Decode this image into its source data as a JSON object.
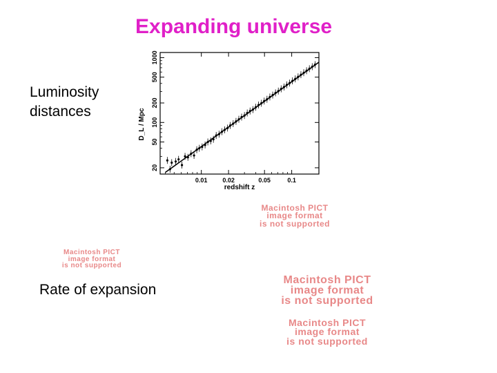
{
  "slide": {
    "title": "Expanding universe",
    "label_luminosity_line1": "Luminosity",
    "label_luminosity_line2": "distances",
    "label_rate": "Rate of expansion",
    "title_color": "#e020c8"
  },
  "placeholders": [
    {
      "line1": "Macintosh PICT",
      "line2": "image format",
      "line3": "is not supported"
    },
    {
      "line1": "Macintosh PICT",
      "line2": "image format",
      "line3": "is not supported"
    },
    {
      "line1": "Macintosh PICT",
      "line2": "image format",
      "line3": "is not supported"
    },
    {
      "line1": "Macintosh PICT",
      "line2": "image format",
      "line3": "is not supported"
    }
  ],
  "chart_data": {
    "type": "scatter",
    "xlabel": "redshift z",
    "ylabel": "D_L / Mpc",
    "xscale": "log",
    "yscale": "log",
    "xlim": [
      0.0035,
      0.2
    ],
    "ylim": [
      16,
      1200
    ],
    "xticks": [
      0.01,
      0.02,
      0.05,
      0.1
    ],
    "xticklabels": [
      "0.01",
      "0.02",
      "0.05",
      "0.1"
    ],
    "yticks": [
      20,
      50,
      100,
      200,
      500,
      1000
    ],
    "yticklabels": [
      "20",
      "50",
      "100",
      "200",
      "500",
      "1000"
    ],
    "fit_line": {
      "x": [
        0.004,
        0.2
      ],
      "y": [
        17,
        850
      ]
    },
    "points": [
      {
        "x": 0.0042,
        "y": 26
      },
      {
        "x": 0.0045,
        "y": 19
      },
      {
        "x": 0.0047,
        "y": 24
      },
      {
        "x": 0.0052,
        "y": 25
      },
      {
        "x": 0.0056,
        "y": 27
      },
      {
        "x": 0.0061,
        "y": 22
      },
      {
        "x": 0.0066,
        "y": 30
      },
      {
        "x": 0.0071,
        "y": 29
      },
      {
        "x": 0.0077,
        "y": 33
      },
      {
        "x": 0.0083,
        "y": 31
      },
      {
        "x": 0.0089,
        "y": 38
      },
      {
        "x": 0.0095,
        "y": 40
      },
      {
        "x": 0.0102,
        "y": 42
      },
      {
        "x": 0.011,
        "y": 45
      },
      {
        "x": 0.0118,
        "y": 50
      },
      {
        "x": 0.0127,
        "y": 52
      },
      {
        "x": 0.0136,
        "y": 55
      },
      {
        "x": 0.0146,
        "y": 63
      },
      {
        "x": 0.0157,
        "y": 66
      },
      {
        "x": 0.0169,
        "y": 72
      },
      {
        "x": 0.0181,
        "y": 77
      },
      {
        "x": 0.0195,
        "y": 82
      },
      {
        "x": 0.0209,
        "y": 90
      },
      {
        "x": 0.0225,
        "y": 96
      },
      {
        "x": 0.0242,
        "y": 104
      },
      {
        "x": 0.026,
        "y": 112
      },
      {
        "x": 0.0279,
        "y": 121
      },
      {
        "x": 0.03,
        "y": 128
      },
      {
        "x": 0.0322,
        "y": 140
      },
      {
        "x": 0.0346,
        "y": 150
      },
      {
        "x": 0.0372,
        "y": 158
      },
      {
        "x": 0.04,
        "y": 172
      },
      {
        "x": 0.043,
        "y": 186
      },
      {
        "x": 0.0462,
        "y": 198
      },
      {
        "x": 0.0496,
        "y": 214
      },
      {
        "x": 0.0533,
        "y": 228
      },
      {
        "x": 0.0573,
        "y": 247
      },
      {
        "x": 0.0616,
        "y": 265
      },
      {
        "x": 0.0662,
        "y": 286
      },
      {
        "x": 0.0711,
        "y": 305
      },
      {
        "x": 0.0764,
        "y": 330
      },
      {
        "x": 0.0821,
        "y": 352
      },
      {
        "x": 0.0882,
        "y": 380
      },
      {
        "x": 0.0948,
        "y": 405
      },
      {
        "x": 0.1019,
        "y": 438
      },
      {
        "x": 0.1095,
        "y": 470
      },
      {
        "x": 0.1177,
        "y": 505
      },
      {
        "x": 0.1265,
        "y": 545
      },
      {
        "x": 0.1359,
        "y": 585
      },
      {
        "x": 0.146,
        "y": 628
      },
      {
        "x": 0.1569,
        "y": 675
      },
      {
        "x": 0.1686,
        "y": 725
      },
      {
        "x": 0.1812,
        "y": 780
      }
    ]
  }
}
